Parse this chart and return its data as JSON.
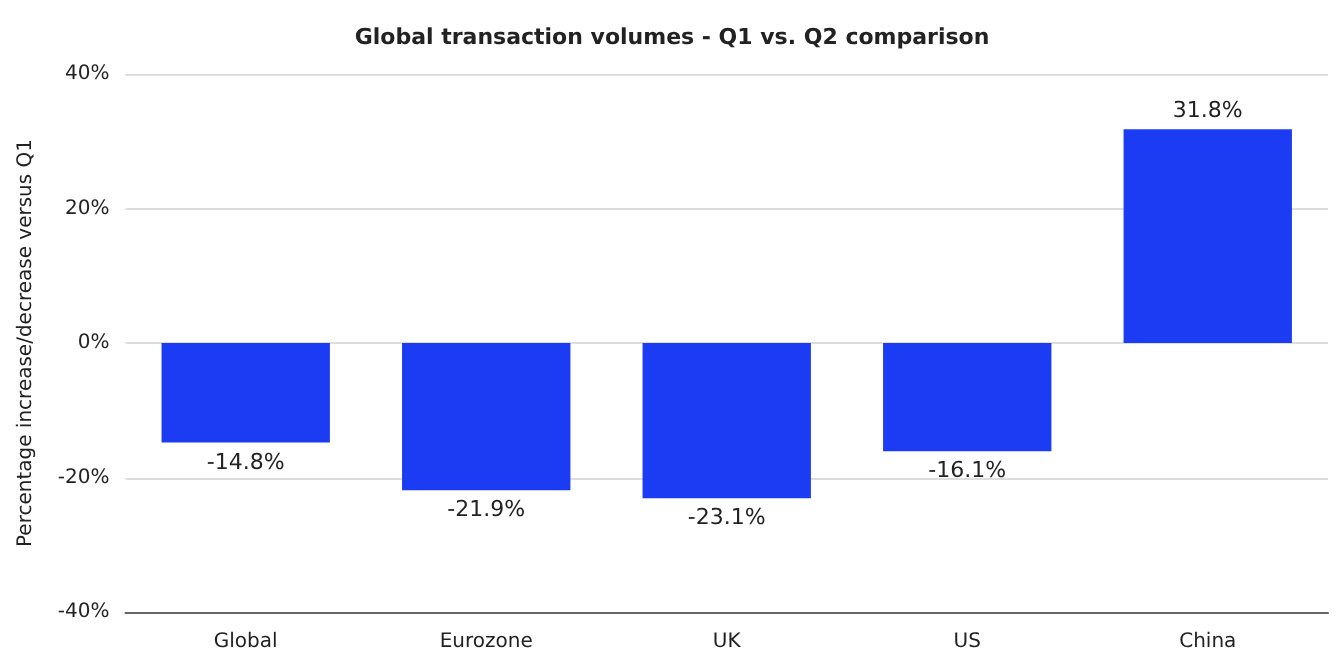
{
  "chart_data": {
    "type": "bar",
    "title": "Global transaction volumes - Q1 vs. Q2 comparison",
    "ylabel": "Percentage increase/decrease versus Q1",
    "categories": [
      "Global",
      "Eurozone",
      "UK",
      "US",
      "China"
    ],
    "values": [
      -14.8,
      -21.9,
      -23.1,
      -16.1,
      31.8
    ],
    "value_labels": [
      "-14.8%",
      "-21.9%",
      "-23.1%",
      "-16.1%",
      "31.8%"
    ],
    "color": "#1c3cf4",
    "ylim": [
      -40,
      40
    ],
    "yticks": [
      {
        "value": -40,
        "label": "-40%"
      },
      {
        "value": -20,
        "label": "-20%"
      },
      {
        "value": 0,
        "label": "0%"
      },
      {
        "value": 20,
        "label": "20%"
      },
      {
        "value": 40,
        "label": "40%"
      }
    ],
    "grid": "y"
  }
}
